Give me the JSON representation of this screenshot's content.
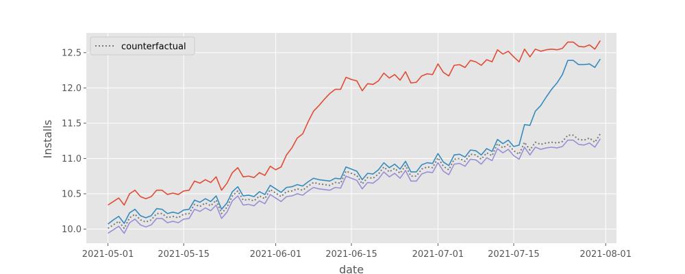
{
  "chart_data": {
    "type": "line",
    "xlabel": "date",
    "ylabel": "Installs",
    "x_start": "2021-05-01",
    "x_end": "2021-07-30",
    "xlim": [
      "2021-04-27",
      "2021-08-03"
    ],
    "ylim": [
      9.8,
      12.78
    ],
    "x_ticks": [
      "2021-05-01",
      "2021-05-15",
      "2021-06-01",
      "2021-06-15",
      "2021-07-01",
      "2021-07-15",
      "2021-08-01"
    ],
    "y_ticks": [
      10.0,
      10.5,
      11.0,
      11.5,
      12.0,
      12.5
    ],
    "grid": true,
    "legend": {
      "position": "top-left",
      "entries": [
        "counterfactual"
      ]
    },
    "series": [
      {
        "color": "#E24A33",
        "style": "solid",
        "values": [
          10.34,
          10.39,
          10.44,
          10.34,
          10.5,
          10.55,
          10.46,
          10.43,
          10.46,
          10.55,
          10.55,
          10.49,
          10.51,
          10.49,
          10.54,
          10.55,
          10.68,
          10.65,
          10.7,
          10.66,
          10.74,
          10.55,
          10.65,
          10.8,
          10.87,
          10.74,
          10.75,
          10.73,
          10.8,
          10.76,
          10.89,
          10.84,
          10.88,
          11.05,
          11.15,
          11.29,
          11.35,
          11.52,
          11.67,
          11.75,
          11.84,
          11.92,
          11.98,
          11.98,
          12.15,
          12.12,
          12.1,
          11.96,
          12.06,
          12.05,
          12.1,
          12.21,
          12.14,
          12.19,
          12.11,
          12.23,
          12.07,
          12.08,
          12.17,
          12.2,
          12.19,
          12.34,
          12.22,
          12.17,
          12.32,
          12.33,
          12.29,
          12.39,
          12.37,
          12.32,
          12.4,
          12.37,
          12.54,
          12.48,
          12.52,
          12.44,
          12.37,
          12.55,
          12.44,
          12.55,
          12.52,
          12.54,
          12.55,
          12.54,
          12.56,
          12.65,
          12.65,
          12.59,
          12.58,
          12.61,
          12.55,
          12.67
        ]
      },
      {
        "color": "#348ABD",
        "style": "solid",
        "values": [
          10.07,
          10.13,
          10.18,
          10.08,
          10.23,
          10.28,
          10.19,
          10.16,
          10.19,
          10.29,
          10.28,
          10.22,
          10.24,
          10.22,
          10.27,
          10.28,
          10.41,
          10.38,
          10.43,
          10.39,
          10.47,
          10.28,
          10.37,
          10.53,
          10.6,
          10.47,
          10.48,
          10.46,
          10.53,
          10.49,
          10.62,
          10.57,
          10.52,
          10.59,
          10.6,
          10.63,
          10.61,
          10.67,
          10.72,
          10.7,
          10.69,
          10.68,
          10.72,
          10.71,
          10.88,
          10.85,
          10.82,
          10.7,
          10.79,
          10.78,
          10.84,
          10.94,
          10.87,
          10.92,
          10.85,
          10.96,
          10.81,
          10.81,
          10.91,
          10.94,
          10.93,
          11.07,
          10.95,
          10.9,
          11.05,
          11.06,
          11.02,
          11.12,
          11.11,
          11.05,
          11.14,
          11.1,
          11.27,
          11.21,
          11.26,
          11.17,
          11.19,
          11.48,
          11.47,
          11.67,
          11.75,
          11.87,
          11.98,
          12.07,
          12.19,
          12.39,
          12.39,
          12.33,
          12.33,
          12.34,
          12.29,
          12.41
        ]
      },
      {
        "color": "#988ED5",
        "style": "solid",
        "values": [
          9.94,
          9.99,
          10.04,
          9.94,
          10.09,
          10.14,
          10.06,
          10.03,
          10.06,
          10.15,
          10.15,
          10.09,
          10.11,
          10.09,
          10.14,
          10.15,
          10.28,
          10.25,
          10.3,
          10.26,
          10.34,
          10.15,
          10.24,
          10.4,
          10.47,
          10.34,
          10.35,
          10.33,
          10.4,
          10.36,
          10.49,
          10.44,
          10.39,
          10.46,
          10.47,
          10.5,
          10.48,
          10.54,
          10.59,
          10.57,
          10.56,
          10.55,
          10.59,
          10.58,
          10.75,
          10.72,
          10.69,
          10.57,
          10.66,
          10.65,
          10.71,
          10.81,
          10.74,
          10.79,
          10.72,
          10.83,
          10.68,
          10.68,
          10.78,
          10.81,
          10.8,
          10.94,
          10.82,
          10.77,
          10.92,
          10.93,
          10.89,
          10.99,
          10.98,
          10.92,
          11.01,
          10.97,
          11.14,
          11.08,
          11.13,
          11.04,
          10.99,
          11.16,
          11.05,
          11.16,
          11.13,
          11.15,
          11.16,
          11.15,
          11.17,
          11.26,
          11.26,
          11.2,
          11.19,
          11.22,
          11.16,
          11.28
        ]
      },
      {
        "name": "counterfactual",
        "color": "#777777",
        "style": "dotted",
        "values": [
          10.01,
          10.06,
          10.11,
          10.01,
          10.16,
          10.21,
          10.13,
          10.1,
          10.13,
          10.22,
          10.22,
          10.16,
          10.18,
          10.16,
          10.21,
          10.22,
          10.35,
          10.32,
          10.37,
          10.33,
          10.41,
          10.22,
          10.31,
          10.47,
          10.54,
          10.41,
          10.42,
          10.4,
          10.47,
          10.43,
          10.56,
          10.51,
          10.46,
          10.53,
          10.54,
          10.57,
          10.55,
          10.61,
          10.66,
          10.64,
          10.63,
          10.62,
          10.66,
          10.65,
          10.82,
          10.79,
          10.76,
          10.64,
          10.73,
          10.72,
          10.78,
          10.88,
          10.81,
          10.86,
          10.79,
          10.9,
          10.75,
          10.75,
          10.85,
          10.88,
          10.87,
          11.01,
          10.89,
          10.84,
          10.99,
          11.0,
          10.96,
          11.06,
          11.05,
          10.99,
          11.08,
          11.04,
          11.21,
          11.15,
          11.2,
          11.11,
          11.06,
          11.23,
          11.12,
          11.23,
          11.2,
          11.22,
          11.23,
          11.22,
          11.24,
          11.33,
          11.33,
          11.27,
          11.26,
          11.29,
          11.23,
          11.35
        ]
      }
    ]
  }
}
